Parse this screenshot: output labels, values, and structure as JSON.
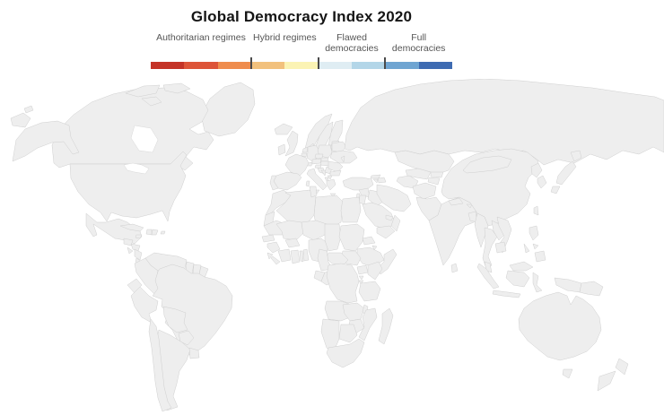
{
  "chart_data": {
    "type": "heatmap",
    "subtype": "world-choropleth",
    "title": "Global Democracy Index 2020",
    "legend_position": "top",
    "grid": false,
    "categories": [
      {
        "id": "authoritarian",
        "label": "Authoritarian regimes",
        "shades": [
          "authoritarian-dark",
          "authoritarian-mid",
          "authoritarian-light"
        ]
      },
      {
        "id": "hybrid",
        "label": "Hybrid regimes",
        "shades": [
          "hybrid-dark",
          "hybrid-light"
        ]
      },
      {
        "id": "flawed",
        "label": "Flawed democracies",
        "shades": [
          "flawed-light",
          "flawed-mid"
        ]
      },
      {
        "id": "full",
        "label": "Full democracies",
        "shades": [
          "full-mid",
          "full-dark"
        ]
      }
    ],
    "palette": {
      "authoritarian-dark": "#c43327",
      "authoritarian-mid": "#dd5438",
      "authoritarian-light": "#ef8c4d",
      "hybrid-dark": "#f2c17d",
      "hybrid-light": "#fbf3b4",
      "flawed-light": "#dfedf3",
      "flawed-mid": "#b3d6e8",
      "full-mid": "#6fa5d2",
      "full-dark": "#3e6bb2",
      "no-data": "#c8c8c8"
    },
    "regions": {
      "canada": "full-dark",
      "united-states": "flawed-mid",
      "greenland": "no-data",
      "mexico": "flawed-light",
      "guatemala": "hybrid-light",
      "honduras": "authoritarian-light",
      "el-salvador": "flawed-light",
      "nicaragua": "authoritarian-light",
      "costa-rica": "full-mid",
      "panama": "flawed-mid",
      "cuba": "authoritarian-mid",
      "jamaica": "flawed-mid",
      "haiti": "authoritarian-light",
      "dominican-republic": "flawed-light",
      "puerto-rico": "flawed-light",
      "venezuela": "authoritarian-mid",
      "colombia": "flawed-mid",
      "guyana": "flawed-light",
      "suriname": "flawed-light",
      "french-guiana": "no-data",
      "ecuador": "flawed-light",
      "peru": "flawed-light",
      "brazil": "flawed-light",
      "bolivia": "hybrid-light",
      "paraguay": "flawed-light",
      "chile": "full-mid",
      "argentina": "flawed-light",
      "uruguay": "full-dark",
      "iceland": "full-dark",
      "norway": "full-dark",
      "sweden": "full-dark",
      "finland": "full-dark",
      "denmark": "full-dark",
      "united-kingdom": "full-dark",
      "ireland": "full-dark",
      "netherlands": "full-dark",
      "belgium": "flawed-mid",
      "germany": "full-mid",
      "poland": "flawed-light",
      "czechia": "flawed-light",
      "slovakia": "flawed-light",
      "austria": "full-mid",
      "switzerland": "full-dark",
      "france": "flawed-mid",
      "spain": "full-mid",
      "portugal": "full-mid",
      "italy": "flawed-mid",
      "slovenia": "flawed-mid",
      "croatia": "flawed-mid",
      "bosnia": "hybrid-light",
      "serbia": "flawed-light",
      "albania": "hybrid-light",
      "north-macedonia": "flawed-light",
      "greece": "flawed-mid",
      "bulgaria": "flawed-light",
      "romania": "flawed-light",
      "hungary": "flawed-light",
      "moldova": "hybrid-light",
      "ukraine": "hybrid-light",
      "belarus": "authoritarian-mid",
      "estonia": "flawed-mid",
      "latvia": "flawed-mid",
      "lithuania": "flawed-mid",
      "russia": "authoritarian-light",
      "kazakhstan": "authoritarian-light",
      "uzbekistan": "authoritarian-mid",
      "turkmenistan": "authoritarian-dark",
      "kyrgyzstan": "authoritarian-light",
      "tajikistan": "authoritarian-dark",
      "afghanistan": "authoritarian-dark",
      "pakistan": "hybrid-dark",
      "india": "flawed-light",
      "nepal": "hybrid-light",
      "bhutan": "hybrid-light",
      "bangladesh": "hybrid-light",
      "sri-lanka": "flawed-light",
      "myanmar": "authoritarian-light",
      "thailand": "authoritarian-light",
      "laos": "authoritarian-dark",
      "vietnam": "authoritarian-dark",
      "cambodia": "authoritarian-light",
      "malaysia": "flawed-mid",
      "indonesia": "flawed-light",
      "philippines": "flawed-light",
      "papua-new-guinea": "flawed-light",
      "china": "authoritarian-mid",
      "mongolia": "flawed-light",
      "north-korea": "authoritarian-dark",
      "south-korea": "full-mid",
      "japan": "full-mid",
      "taiwan": "full-dark",
      "georgia": "hybrid-light",
      "armenia": "authoritarian-light",
      "azerbaijan": "authoritarian-mid",
      "turkey": "hybrid-dark",
      "syria": "authoritarian-dark",
      "iraq": "authoritarian-mid",
      "iran": "authoritarian-mid",
      "israel": "flawed-mid",
      "jordan": "authoritarian-light",
      "saudi-arabia": "authoritarian-dark",
      "yemen": "authoritarian-dark",
      "oman": "authoritarian-light",
      "uae": "authoritarian-light",
      "morocco": "hybrid-dark",
      "western-sahara": "no-data",
      "algeria": "authoritarian-light",
      "tunisia": "hybrid-light",
      "libya": "authoritarian-dark",
      "egypt": "authoritarian-light",
      "mauritania": "authoritarian-light",
      "mali": "hybrid-dark",
      "senegal": "hybrid-light",
      "guinea": "authoritarian-mid",
      "sierra-leone": "hybrid-dark",
      "liberia": "hybrid-dark",
      "ivory-coast": "hybrid-dark",
      "burkina-faso": "hybrid-dark",
      "ghana": "flawed-mid",
      "togo": "authoritarian-mid",
      "benin": "hybrid-light",
      "niger": "authoritarian-light",
      "nigeria": "hybrid-dark",
      "chad": "authoritarian-dark",
      "sudan": "authoritarian-dark",
      "eritrea": "authoritarian-dark",
      "djibouti": "authoritarian-mid",
      "ethiopia": "authoritarian-light",
      "somalia": "no-data",
      "south-sudan": "no-data",
      "cameroon": "authoritarian-mid",
      "central-african-republic": "authoritarian-dark",
      "gabon": "authoritarian-light",
      "republic-of-congo": "authoritarian-mid",
      "dr-congo": "authoritarian-dark",
      "uganda": "authoritarian-light",
      "kenya": "authoritarian-light",
      "rwanda": "authoritarian-mid",
      "burundi": "authoritarian-dark",
      "tanzania": "hybrid-light",
      "angola": "authoritarian-light",
      "zambia": "authoritarian-light",
      "malawi": "hybrid-light",
      "mozambique": "authoritarian-light",
      "zimbabwe": "authoritarian-mid",
      "botswana": "flawed-mid",
      "namibia": "flawed-light",
      "south-africa": "flawed-mid",
      "madagascar": "hybrid-light",
      "australia": "full-mid",
      "new-zealand": "full-dark"
    }
  }
}
